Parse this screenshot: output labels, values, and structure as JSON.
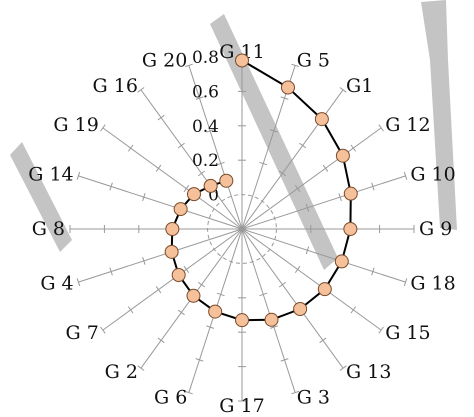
{
  "chart_data": {
    "type": "radar",
    "categories": [
      "G 11",
      "G 5",
      "G1",
      "G 12",
      "G 10",
      "G 9",
      "G 18",
      "G 15",
      "G 13",
      "G 3",
      "G 17",
      "G 6",
      "G 2",
      "G 7",
      "G 4",
      "G 8",
      "G 14",
      "G 19",
      "G 16",
      "G 20"
    ],
    "values": [
      0.78,
      0.665,
      0.59,
      0.525,
      0.465,
      0.43,
      0.41,
      0.395,
      0.375,
      0.355,
      0.33,
      0.305,
      0.28,
      0.255,
      0.23,
      0.205,
      0.175,
      0.145,
      0.11,
      0.095
    ],
    "radial_ticks": [
      "0",
      "0.2",
      "0.4",
      "0.6",
      "0.8"
    ],
    "rlim": [
      -0.2,
      0.8
    ],
    "marker_color": "#f4c19a",
    "line_color": "#000000",
    "spoke_color": "#999999",
    "watermark_color": "#c4c4c4"
  }
}
